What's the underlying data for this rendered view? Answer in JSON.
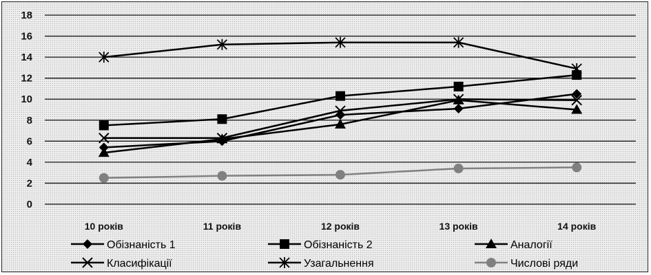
{
  "chart_data": {
    "type": "line",
    "categories": [
      "10 років",
      "11 років",
      "12 років",
      "13 років",
      "14 років"
    ],
    "series": [
      {
        "name": "Обізнаність 1",
        "values": [
          5.4,
          6.0,
          8.5,
          9.1,
          10.5
        ],
        "marker": "diamond",
        "color": "#000000"
      },
      {
        "name": "Обізнаність 2",
        "values": [
          7.5,
          8.1,
          10.3,
          11.2,
          12.3
        ],
        "marker": "square",
        "color": "#000000"
      },
      {
        "name": "Аналогії",
        "values": [
          4.9,
          6.2,
          7.6,
          9.9,
          9.0
        ],
        "marker": "triangle",
        "color": "#000000"
      },
      {
        "name": "Класифікації",
        "values": [
          6.3,
          6.3,
          8.9,
          10.0,
          9.9
        ],
        "marker": "x",
        "color": "#000000"
      },
      {
        "name": "Узагальнення",
        "values": [
          14.0,
          15.2,
          15.4,
          15.4,
          12.9
        ],
        "marker": "star",
        "color": "#000000"
      },
      {
        "name": "Числові ряди",
        "values": [
          2.5,
          2.7,
          2.8,
          3.4,
          3.5
        ],
        "marker": "circle",
        "color": "#808080"
      }
    ],
    "yticks": [
      "0",
      "2",
      "4",
      "6",
      "8",
      "10",
      "12",
      "14",
      "16",
      "18"
    ],
    "ylim": [
      0,
      18
    ],
    "grid": true,
    "legend_position": "bottom",
    "title": "",
    "xlabel": "",
    "ylabel": ""
  }
}
